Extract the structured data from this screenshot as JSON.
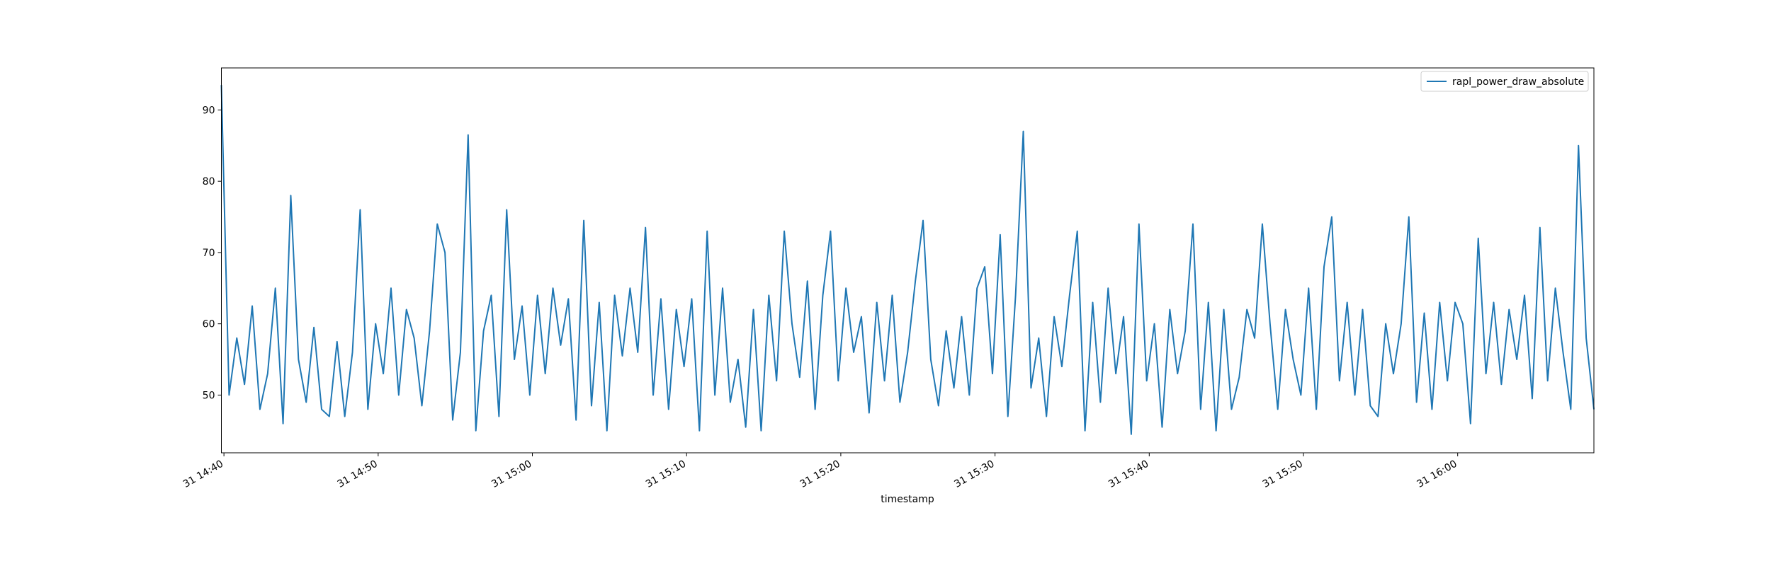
{
  "chart_data": {
    "type": "line",
    "x_label": "timestamp",
    "x": [
      "31 14:39:50",
      "31 14:40:20",
      "31 14:40:50",
      "31 14:41:20",
      "31 14:41:50",
      "31 14:42:20",
      "31 14:42:50",
      "31 14:43:20",
      "31 14:43:50",
      "31 14:44:20",
      "31 14:44:50",
      "31 14:45:20",
      "31 14:45:50",
      "31 14:46:20",
      "31 14:46:50",
      "31 14:47:20",
      "31 14:47:50",
      "31 14:48:20",
      "31 14:48:50",
      "31 14:49:20",
      "31 14:49:50",
      "31 14:50:20",
      "31 14:50:50",
      "31 14:51:20",
      "31 14:51:50",
      "31 14:52:20",
      "31 14:52:50",
      "31 14:53:20",
      "31 14:53:50",
      "31 14:54:20",
      "31 14:54:50",
      "31 14:55:20",
      "31 14:55:50",
      "31 14:56:20",
      "31 14:56:50",
      "31 14:57:20",
      "31 14:57:50",
      "31 14:58:20",
      "31 14:58:50",
      "31 14:59:20",
      "31 14:59:50",
      "31 15:00:20",
      "31 15:00:50",
      "31 15:01:20",
      "31 15:01:50",
      "31 15:02:20",
      "31 15:02:50",
      "31 15:03:20",
      "31 15:03:50",
      "31 15:04:20",
      "31 15:04:50",
      "31 15:05:20",
      "31 15:05:50",
      "31 15:06:20",
      "31 15:06:50",
      "31 15:07:20",
      "31 15:07:50",
      "31 15:08:20",
      "31 15:08:50",
      "31 15:09:20",
      "31 15:09:50",
      "31 15:10:20",
      "31 15:10:50",
      "31 15:11:20",
      "31 15:11:50",
      "31 15:12:20",
      "31 15:12:50",
      "31 15:13:20",
      "31 15:13:50",
      "31 15:14:20",
      "31 15:14:50",
      "31 15:15:20",
      "31 15:15:50",
      "31 15:16:20",
      "31 15:16:50",
      "31 15:17:20",
      "31 15:17:50",
      "31 15:18:20",
      "31 15:18:50",
      "31 15:19:20",
      "31 15:19:50",
      "31 15:20:20",
      "31 15:20:50",
      "31 15:21:20",
      "31 15:21:50",
      "31 15:22:20",
      "31 15:22:50",
      "31 15:23:20",
      "31 15:23:50",
      "31 15:24:20",
      "31 15:24:50",
      "31 15:25:20",
      "31 15:25:50",
      "31 15:26:20",
      "31 15:26:50",
      "31 15:27:20",
      "31 15:27:50",
      "31 15:28:20",
      "31 15:28:50",
      "31 15:29:20",
      "31 15:29:50",
      "31 15:30:20",
      "31 15:30:50",
      "31 15:31:20",
      "31 15:31:50",
      "31 15:32:20",
      "31 15:32:50",
      "31 15:33:20",
      "31 15:33:50",
      "31 15:34:20",
      "31 15:34:50",
      "31 15:35:20",
      "31 15:35:50",
      "31 15:36:20",
      "31 15:36:50",
      "31 15:37:20",
      "31 15:37:50",
      "31 15:38:20",
      "31 15:38:50",
      "31 15:39:20",
      "31 15:39:50",
      "31 15:40:20",
      "31 15:40:50",
      "31 15:41:20",
      "31 15:41:50",
      "31 15:42:20",
      "31 15:42:50",
      "31 15:43:20",
      "31 15:43:50",
      "31 15:44:20",
      "31 15:44:50",
      "31 15:45:20",
      "31 15:45:50",
      "31 15:46:20",
      "31 15:46:50",
      "31 15:47:20",
      "31 15:47:50",
      "31 15:48:20",
      "31 15:48:50",
      "31 15:49:20",
      "31 15:49:50",
      "31 15:50:20",
      "31 15:50:50",
      "31 15:51:20",
      "31 15:51:50",
      "31 15:52:20",
      "31 15:52:50",
      "31 15:53:20",
      "31 15:53:50",
      "31 15:54:20",
      "31 15:54:50",
      "31 15:55:20",
      "31 15:55:50",
      "31 15:56:20",
      "31 15:56:50",
      "31 15:57:20",
      "31 15:57:50",
      "31 15:58:20",
      "31 15:58:50",
      "31 15:59:20",
      "31 15:59:50",
      "31 16:00:20",
      "31 16:00:50",
      "31 16:01:20",
      "31 16:01:50",
      "31 16:02:20",
      "31 16:02:50",
      "31 16:03:20",
      "31 16:03:50",
      "31 16:04:20",
      "31 16:04:50",
      "31 16:05:20",
      "31 16:05:50",
      "31 16:06:20",
      "31 16:06:50",
      "31 16:07:20",
      "31 16:07:50",
      "31 16:08:20",
      "31 16:08:50"
    ],
    "series": [
      {
        "name": "rapl_power_draw_absolute",
        "color": "#1f77b4",
        "values": [
          93.5,
          50,
          58,
          51.5,
          62.5,
          48,
          53,
          65,
          46,
          78,
          55,
          49,
          59.5,
          48,
          47,
          57.5,
          47,
          56,
          76,
          48,
          60,
          53,
          65,
          50,
          62,
          58,
          48.5,
          59,
          74,
          70,
          46.5,
          56,
          86.5,
          45,
          59,
          64,
          47,
          76,
          55,
          62.5,
          50,
          64,
          53,
          65,
          57,
          63.5,
          46.5,
          74.5,
          48.5,
          63,
          45,
          64,
          55.5,
          65,
          56,
          73.5,
          50,
          63.5,
          48,
          62,
          54,
          63.5,
          45,
          73,
          50,
          65,
          49,
          55,
          45.5,
          62,
          45,
          64,
          52,
          73,
          60,
          52.5,
          66,
          48,
          64,
          73,
          52,
          65,
          56,
          61,
          47.5,
          63,
          52,
          64,
          49,
          56,
          66,
          74.5,
          55,
          48.5,
          59,
          51,
          61,
          50,
          65,
          68,
          53,
          72.5,
          47,
          64,
          87,
          51,
          58,
          47,
          61,
          54,
          64,
          73,
          45,
          63,
          49,
          65,
          53,
          61,
          44.5,
          74,
          52,
          60,
          45.5,
          62,
          53,
          59,
          74,
          48,
          63,
          45,
          62,
          48,
          52.5,
          62,
          58,
          74,
          60,
          48,
          62,
          55,
          50,
          65,
          48,
          68,
          75,
          52,
          63,
          50,
          62,
          48.5,
          47,
          60,
          53,
          60,
          75,
          49,
          61.5,
          48,
          63,
          52,
          63,
          60,
          46,
          72,
          53,
          63,
          51.5,
          62,
          55,
          64,
          49.5,
          73.5,
          52,
          65,
          56,
          48,
          85,
          58,
          48
        ]
      }
    ],
    "xlim": [
      "31 14:39:50",
      "31 16:08:50"
    ],
    "xticks": [
      "31 14:40",
      "31 14:50",
      "31 15:00",
      "31 15:10",
      "31 15:20",
      "31 15:30",
      "31 15:40",
      "31 15:50",
      "31 16:00"
    ],
    "ylim": [
      41.9,
      95.9
    ],
    "yticks": [
      50,
      60,
      70,
      80,
      90
    ],
    "legend": "upper right",
    "grid": false
  }
}
